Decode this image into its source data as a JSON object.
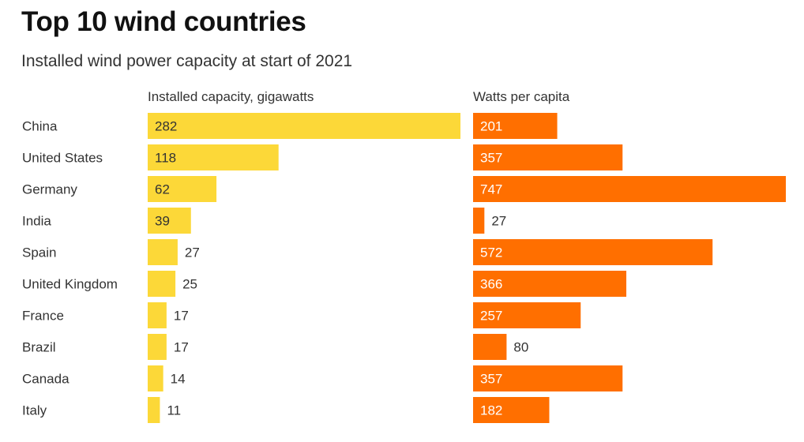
{
  "title": "Top 10 wind countries",
  "subtitle": "Installed wind power capacity at start of 2021",
  "colors": {
    "capacity": "#fcd838",
    "per_capita": "#ff6f00",
    "label_inside_capacity": "#333333",
    "label_inside_per_capita": "#ffffff",
    "label_outside": "#333333"
  },
  "chart_data": [
    {
      "type": "bar",
      "orientation": "horizontal",
      "title": "Installed capacity, gigawatts",
      "categories": [
        "China",
        "United States",
        "Germany",
        "India",
        "Spain",
        "United Kingdom",
        "France",
        "Brazil",
        "Canada",
        "Italy"
      ],
      "values": [
        282,
        118,
        62,
        39,
        27,
        25,
        17,
        17,
        14,
        11
      ],
      "data_labels": [
        "282",
        "118",
        "62",
        "39",
        "27",
        "25",
        "17",
        "17",
        "14",
        "11"
      ],
      "xlim": [
        0,
        282
      ],
      "grid": false
    },
    {
      "type": "bar",
      "orientation": "horizontal",
      "title": "Watts per capita",
      "categories": [
        "China",
        "United States",
        "Germany",
        "India",
        "Spain",
        "United Kingdom",
        "France",
        "Brazil",
        "Canada",
        "Italy"
      ],
      "values": [
        201,
        357,
        747,
        27,
        572,
        366,
        257,
        80,
        357,
        182
      ],
      "data_labels": [
        "201",
        "357",
        "747",
        "27",
        "572",
        "366",
        "257",
        "80",
        "357",
        "182"
      ],
      "xlim": [
        0,
        747
      ],
      "grid": false
    }
  ]
}
